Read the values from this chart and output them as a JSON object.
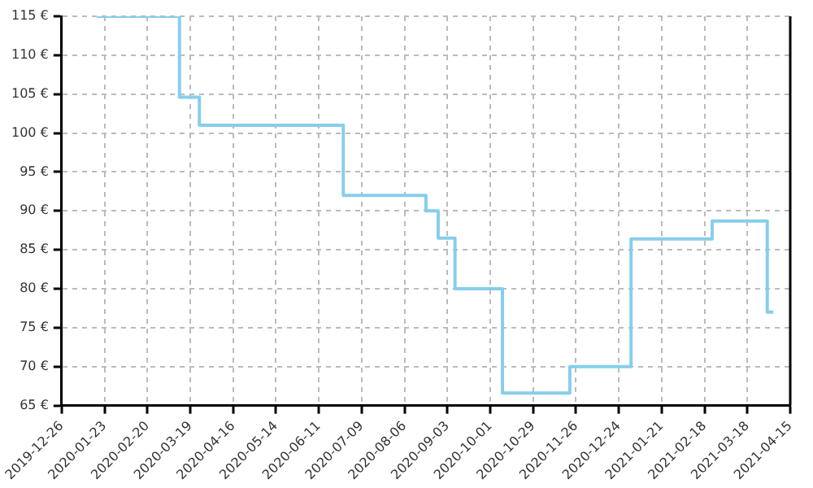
{
  "chart_data": {
    "type": "step",
    "x": [
      "2020-01-18",
      "2020-03-12",
      "2020-03-25",
      "2020-06-27",
      "2020-08-20",
      "2020-08-28",
      "2020-09-08",
      "2020-10-09",
      "2020-11-22",
      "2021-01-01",
      "2021-02-23",
      "2021-03-31",
      "2021-04-04"
    ],
    "series": [
      {
        "color": "#87ceeb",
        "values": [
          115,
          104.6,
          101,
          92,
          90,
          86.5,
          80,
          66.6,
          70,
          86.4,
          88.7,
          77,
          77
        ]
      }
    ],
    "xlim": [
      "2019-12-26",
      "2021-04-15"
    ],
    "xticks": [
      "2019-12-26",
      "2020-01-23",
      "2020-02-20",
      "2020-03-19",
      "2020-04-16",
      "2020-05-14",
      "2020-06-11",
      "2020-07-09",
      "2020-08-06",
      "2020-09-03",
      "2020-10-01",
      "2020-10-29",
      "2020-11-26",
      "2020-12-24",
      "2021-01-21",
      "2021-02-18",
      "2021-03-18",
      "2021-04-15"
    ],
    "ylim": [
      65,
      115
    ],
    "yticks": [
      {
        "value": 65,
        "label": "65 €"
      },
      {
        "value": 70,
        "label": "70 €"
      },
      {
        "value": 75,
        "label": "75 €"
      },
      {
        "value": 80,
        "label": "80 €"
      },
      {
        "value": 85,
        "label": "85 €"
      },
      {
        "value": 90,
        "label": "90 €"
      },
      {
        "value": 95,
        "label": "95 €"
      },
      {
        "value": 100,
        "label": "100 €"
      },
      {
        "value": 105,
        "label": "105 €"
      },
      {
        "value": 110,
        "label": "110 €"
      },
      {
        "value": 115,
        "label": "115 €"
      }
    ],
    "grid": true,
    "legend": false
  }
}
